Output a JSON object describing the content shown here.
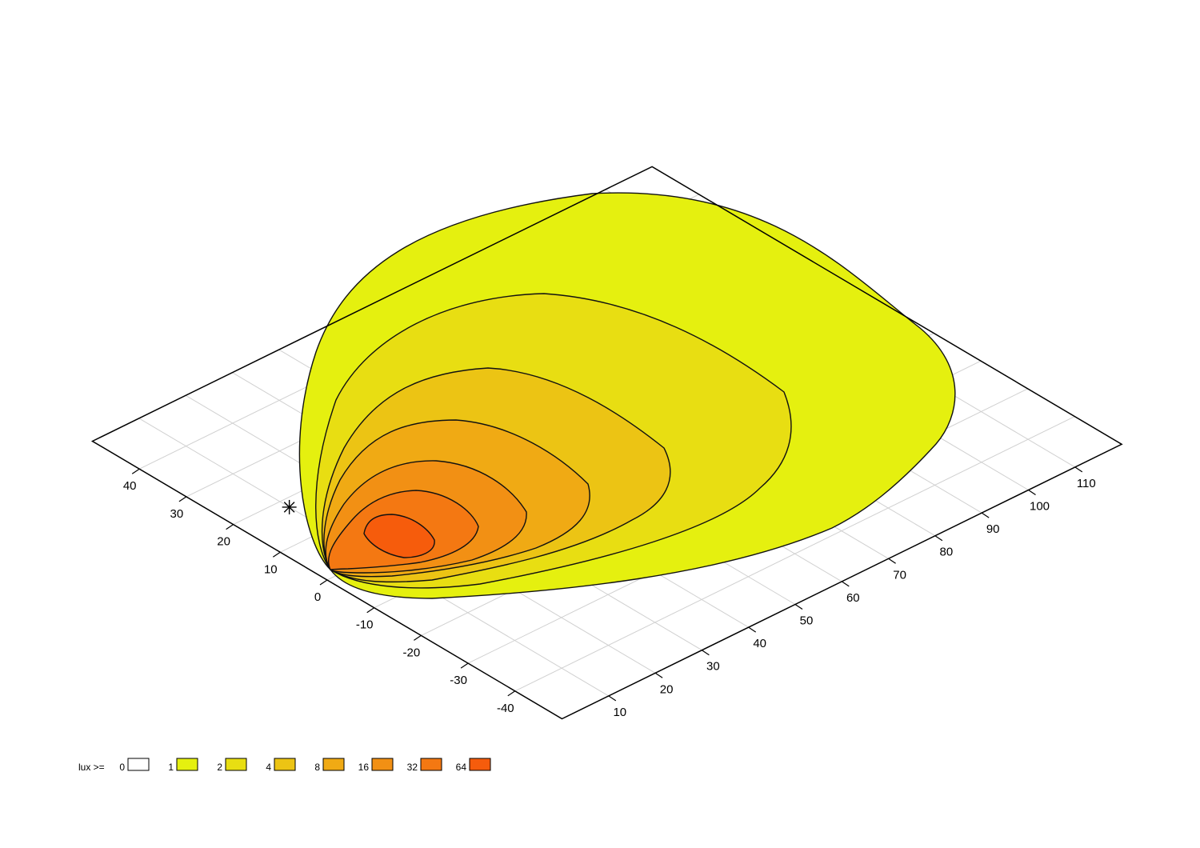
{
  "chart_data": {
    "type": "heatmap",
    "subtype": "isolux-contour",
    "title": "",
    "xlabel": "",
    "ylabel": "",
    "x_axis": {
      "range": [
        0,
        120
      ],
      "ticks": [
        10,
        20,
        30,
        40,
        50,
        60,
        70,
        80,
        90,
        100,
        110
      ]
    },
    "y_axis": {
      "range": [
        -50,
        50
      ],
      "ticks": [
        -40,
        -30,
        -20,
        -10,
        0,
        10,
        20,
        30,
        40
      ]
    },
    "grid": true,
    "legend": {
      "placement": "bottom-left",
      "title": "lux >=",
      "entries": [
        {
          "label": "0",
          "color": "#ffffff"
        },
        {
          "label": "1",
          "color": "#e5f00f"
        },
        {
          "label": "2",
          "color": "#e8de12"
        },
        {
          "label": "4",
          "color": "#ecc414"
        },
        {
          "label": "8",
          "color": "#f0aa14"
        },
        {
          "label": "16",
          "color": "#f29014"
        },
        {
          "label": "32",
          "color": "#f47812"
        },
        {
          "label": "64",
          "color": "#f65c0c"
        }
      ]
    },
    "light_source": {
      "x": 10,
      "y": 18
    }
  }
}
